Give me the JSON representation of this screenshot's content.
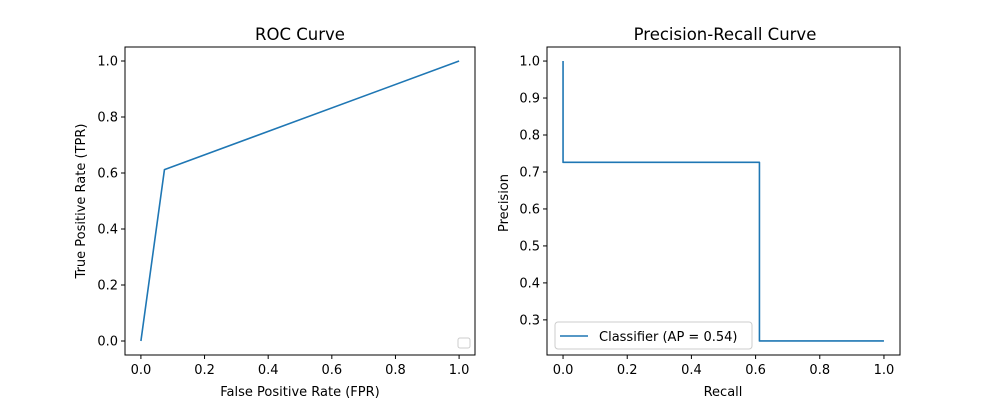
{
  "chart_data": [
    {
      "type": "line",
      "title": "ROC Curve",
      "xlabel": "False Positive Rate (FPR)",
      "ylabel": "True Positive Rate (TPR)",
      "xlim": [
        -0.05,
        1.05
      ],
      "ylim": [
        -0.05,
        1.05
      ],
      "xticks": [
        "0.0",
        "0.2",
        "0.4",
        "0.6",
        "0.8",
        "1.0"
      ],
      "yticks": [
        "0.0",
        "0.2",
        "0.4",
        "0.6",
        "0.8",
        "1.0"
      ],
      "series": [
        {
          "color": "#1f77b4",
          "x": [
            0.0,
            0.074,
            1.0
          ],
          "y": [
            0.0,
            0.612,
            1.0
          ]
        }
      ],
      "legend": {
        "placement": "lower-right",
        "entries": []
      },
      "grid": false
    },
    {
      "type": "line",
      "title": "Precision-Recall Curve",
      "xlabel": "Recall",
      "ylabel": "Precision",
      "xlim": [
        -0.05,
        1.05
      ],
      "ylim": [
        0.205,
        1.038
      ],
      "xticks": [
        "0.0",
        "0.2",
        "0.4",
        "0.6",
        "0.8",
        "1.0"
      ],
      "yticks": [
        "0.3",
        "0.4",
        "0.5",
        "0.6",
        "0.7",
        "0.8",
        "0.9",
        "1.0"
      ],
      "series": [
        {
          "name": "Classifier (AP = 0.54)",
          "color": "#1f77b4",
          "step": true,
          "x": [
            0.0,
            0.0,
            0.612,
            0.612,
            1.0
          ],
          "y": [
            1.0,
            0.726,
            0.726,
            0.243,
            0.243
          ]
        }
      ],
      "legend": {
        "placement": "lower-left",
        "entries": [
          "Classifier (AP = 0.54)"
        ]
      },
      "grid": false
    }
  ]
}
